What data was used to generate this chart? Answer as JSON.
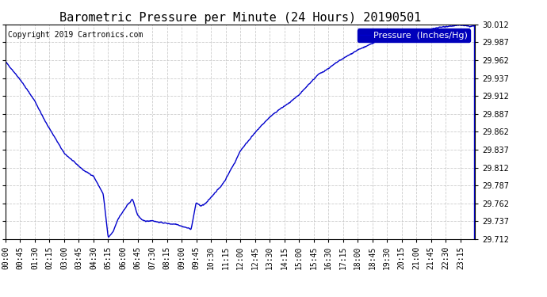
{
  "title": "Barometric Pressure per Minute (24 Hours) 20190501",
  "copyright": "Copyright 2019 Cartronics.com",
  "legend_label": "Pressure  (Inches/Hg)",
  "line_color": "#0000CC",
  "background_color": "#ffffff",
  "grid_color": "#c0c0c0",
  "ylim": [
    29.712,
    30.012
  ],
  "yticks": [
    29.712,
    29.737,
    29.762,
    29.787,
    29.812,
    29.837,
    29.862,
    29.887,
    29.912,
    29.937,
    29.962,
    29.987,
    30.012
  ],
  "xtick_labels": [
    "00:00",
    "00:45",
    "01:30",
    "02:15",
    "03:00",
    "03:45",
    "04:30",
    "05:15",
    "06:00",
    "06:45",
    "07:30",
    "08:15",
    "09:00",
    "09:45",
    "10:30",
    "11:15",
    "12:00",
    "12:45",
    "13:30",
    "14:15",
    "15:00",
    "15:45",
    "16:30",
    "17:15",
    "18:00",
    "18:45",
    "19:30",
    "20:15",
    "21:00",
    "21:45",
    "22:30",
    "23:15"
  ],
  "title_fontsize": 11,
  "tick_fontsize": 7,
  "legend_fontsize": 8,
  "copyright_fontsize": 7,
  "line_width": 1.0,
  "n_points": 1440,
  "waypoints": [
    [
      0.0,
      29.96
    ],
    [
      0.3,
      29.95
    ],
    [
      0.75,
      29.935
    ],
    [
      1.5,
      29.905
    ],
    [
      2.0,
      29.878
    ],
    [
      2.5,
      29.855
    ],
    [
      3.0,
      29.832
    ],
    [
      3.5,
      29.82
    ],
    [
      3.75,
      29.814
    ],
    [
      4.0,
      29.808
    ],
    [
      4.5,
      29.8
    ],
    [
      5.0,
      29.775
    ],
    [
      5.25,
      29.714
    ],
    [
      5.5,
      29.722
    ],
    [
      5.75,
      29.74
    ],
    [
      6.0,
      29.75
    ],
    [
      6.25,
      29.76
    ],
    [
      6.5,
      29.768
    ],
    [
      6.75,
      29.746
    ],
    [
      7.0,
      29.738
    ],
    [
      7.25,
      29.737
    ],
    [
      7.5,
      29.738
    ],
    [
      7.75,
      29.736
    ],
    [
      8.0,
      29.735
    ],
    [
      8.25,
      29.734
    ],
    [
      8.5,
      29.733
    ],
    [
      8.75,
      29.733
    ],
    [
      9.0,
      29.73
    ],
    [
      9.25,
      29.728
    ],
    [
      9.5,
      29.726
    ],
    [
      9.75,
      29.763
    ],
    [
      10.0,
      29.758
    ],
    [
      10.25,
      29.762
    ],
    [
      10.5,
      29.77
    ],
    [
      10.75,
      29.778
    ],
    [
      11.0,
      29.785
    ],
    [
      11.25,
      29.795
    ],
    [
      11.5,
      29.808
    ],
    [
      11.75,
      29.82
    ],
    [
      12.0,
      29.835
    ],
    [
      12.5,
      29.852
    ],
    [
      13.0,
      29.868
    ],
    [
      13.5,
      29.882
    ],
    [
      14.0,
      29.893
    ],
    [
      14.5,
      29.902
    ],
    [
      15.0,
      29.913
    ],
    [
      15.5,
      29.928
    ],
    [
      16.0,
      29.942
    ],
    [
      16.5,
      29.95
    ],
    [
      17.0,
      29.96
    ],
    [
      17.5,
      29.968
    ],
    [
      18.0,
      29.976
    ],
    [
      18.5,
      29.982
    ],
    [
      19.0,
      29.988
    ],
    [
      19.5,
      29.992
    ],
    [
      20.0,
      29.995
    ],
    [
      20.5,
      29.997
    ],
    [
      21.0,
      30.0
    ],
    [
      21.5,
      30.003
    ],
    [
      22.0,
      30.007
    ],
    [
      22.5,
      30.009
    ],
    [
      23.0,
      30.01
    ],
    [
      23.25,
      30.011
    ],
    [
      23.5,
      30.01
    ],
    [
      23.75,
      30.009
    ],
    [
      24.0,
      30.01
    ]
  ]
}
